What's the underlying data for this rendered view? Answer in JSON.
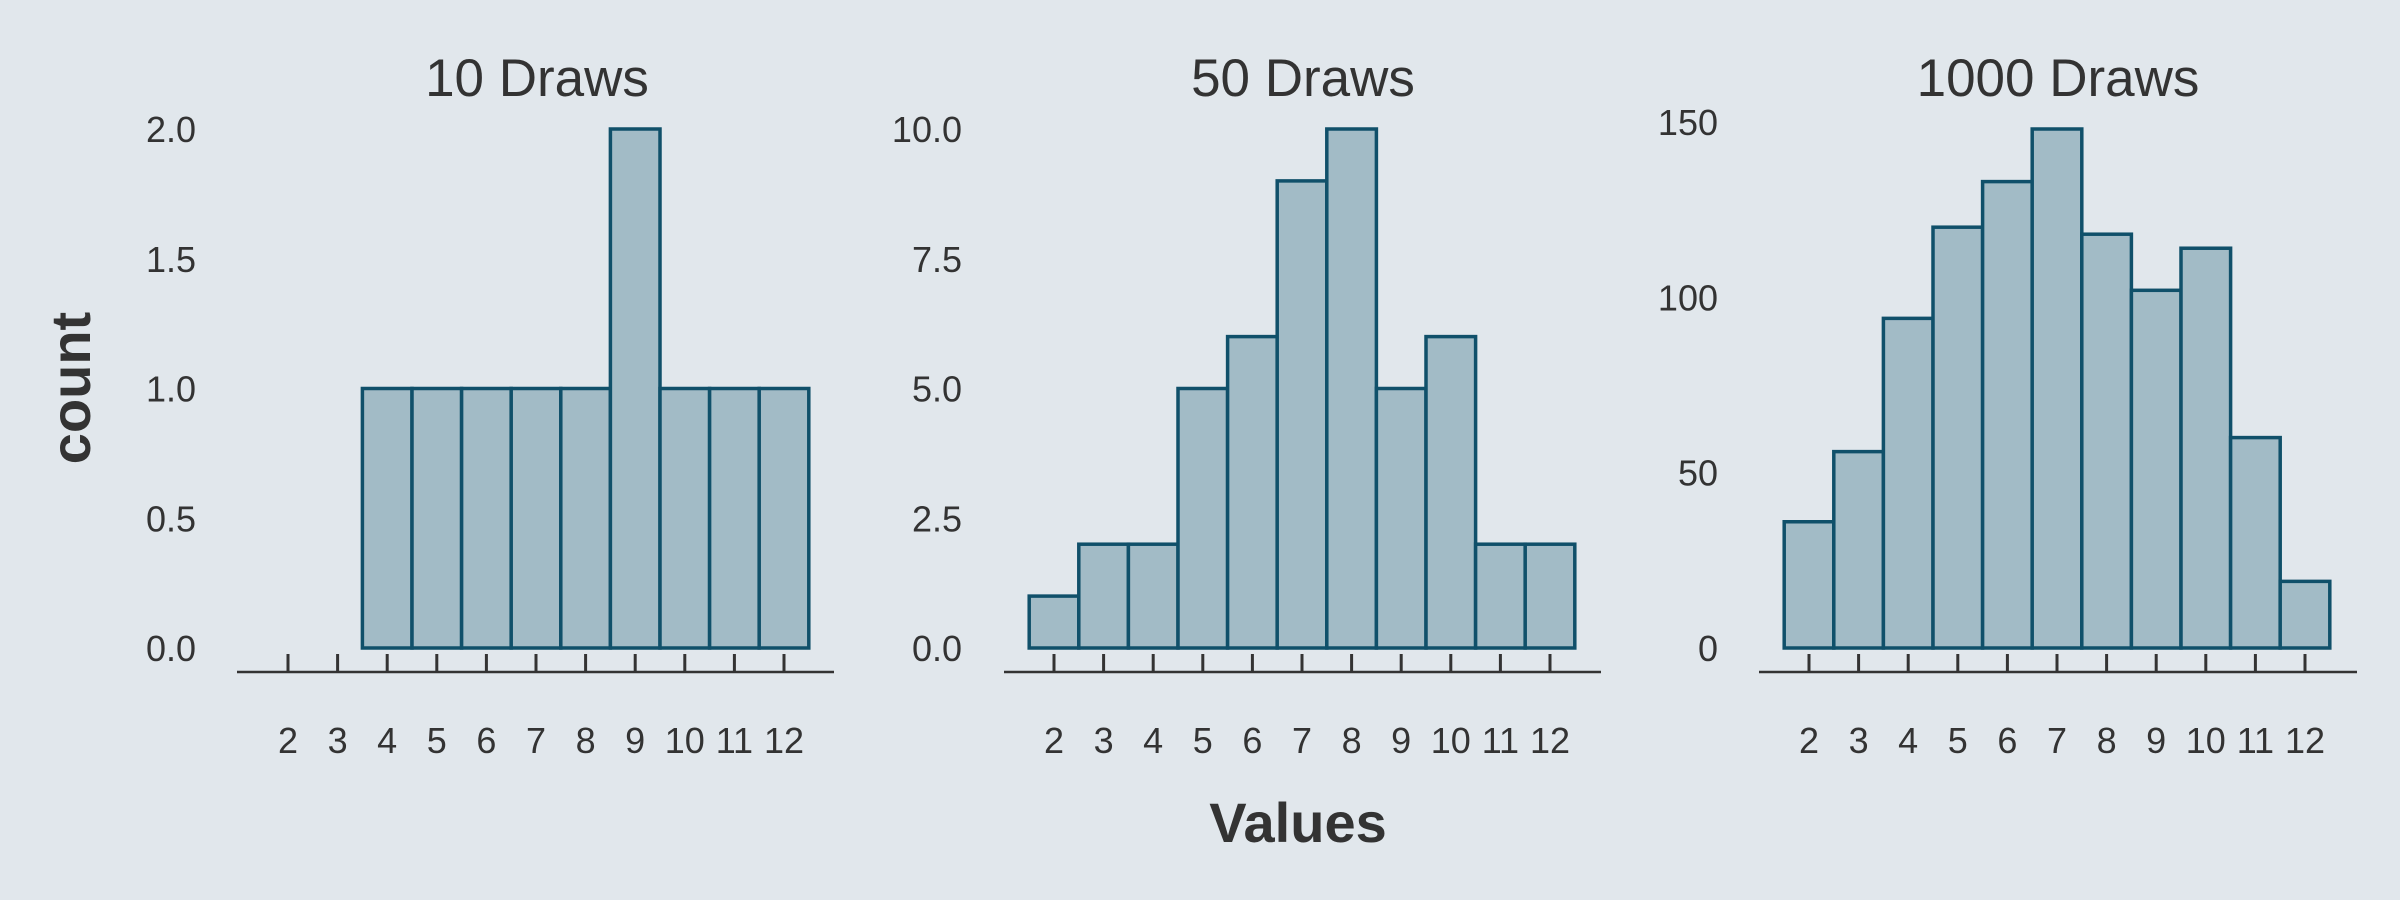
{
  "chart_data": {
    "type": "bar",
    "xlabel": "Values",
    "ylabel": "count",
    "panels": [
      {
        "title": "10 Draws",
        "x": [
          2,
          3,
          4,
          5,
          6,
          7,
          8,
          9,
          10,
          11,
          12
        ],
        "values": [
          0,
          0,
          1,
          1,
          1,
          1,
          1,
          2,
          1,
          1,
          1
        ],
        "ylim": [
          0,
          2
        ],
        "yticks": [
          "0.0",
          "0.5",
          "1.0",
          "1.5",
          "2.0"
        ],
        "ytick_values": [
          0,
          0.5,
          1,
          1.5,
          2
        ]
      },
      {
        "title": "50 Draws",
        "x": [
          2,
          3,
          4,
          5,
          6,
          7,
          8,
          9,
          10,
          11,
          12
        ],
        "values": [
          1,
          2,
          2,
          5,
          6,
          9,
          10,
          5,
          6,
          2,
          2
        ],
        "ylim": [
          0,
          10
        ],
        "yticks": [
          "0.0",
          "2.5",
          "5.0",
          "7.5",
          "10.0"
        ],
        "ytick_values": [
          0,
          2.5,
          5,
          7.5,
          10
        ]
      },
      {
        "title": "1000 Draws",
        "x": [
          2,
          3,
          4,
          5,
          6,
          7,
          8,
          9,
          10,
          11,
          12
        ],
        "values": [
          36,
          56,
          94,
          120,
          133,
          148,
          118,
          102,
          114,
          60,
          19
        ],
        "ylim": [
          0,
          148
        ],
        "yticks": [
          "0",
          "50",
          "100",
          "150"
        ],
        "ytick_values": [
          0,
          50,
          100,
          150
        ]
      }
    ],
    "colors": {
      "bar_fill": "#a2bbc6",
      "bar_stroke": "#10506a",
      "background": "#e1e7ec"
    },
    "grid": false,
    "legend": "none"
  }
}
